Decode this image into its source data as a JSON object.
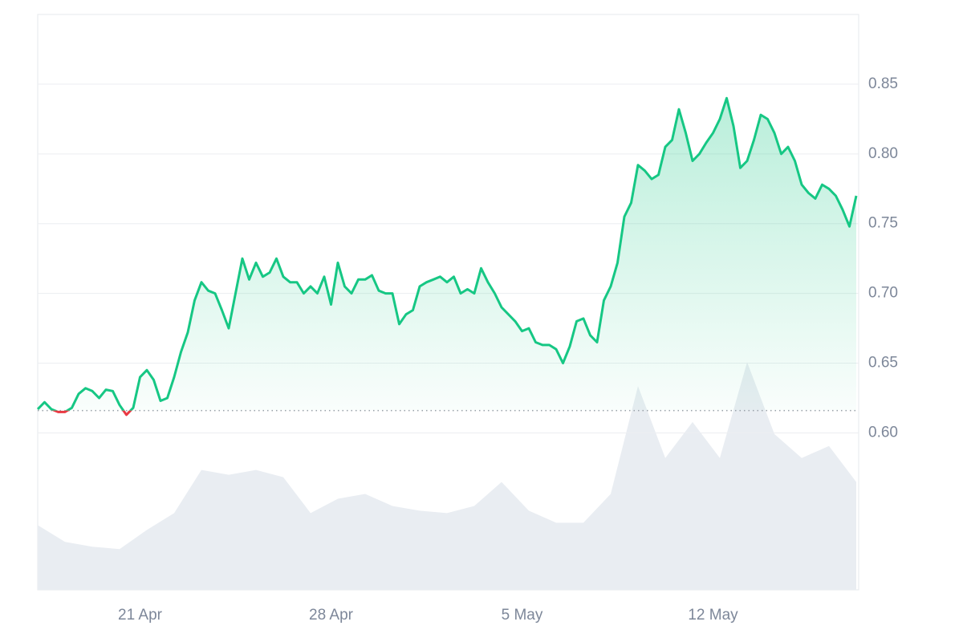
{
  "chart_data": {
    "type": "line",
    "categories": [
      null,
      null,
      null,
      null,
      null,
      null,
      null,
      null,
      null,
      null,
      null,
      null,
      null,
      null,
      null,
      "21 Apr",
      null,
      null,
      null,
      null,
      null,
      null,
      null,
      null,
      null,
      null,
      null,
      null,
      null,
      null,
      null,
      null,
      null,
      null,
      null,
      null,
      null,
      null,
      null,
      null,
      null,
      null,
      null,
      "28 Apr",
      null,
      null,
      null,
      null,
      null,
      null,
      null,
      null,
      null,
      null,
      null,
      null,
      null,
      null,
      null,
      null,
      null,
      null,
      null,
      null,
      null,
      null,
      null,
      null,
      null,
      null,
      null,
      "5 May",
      null,
      null,
      null,
      null,
      null,
      null,
      null,
      null,
      null,
      null,
      null,
      null,
      null,
      null,
      null,
      null,
      null,
      null,
      null,
      null,
      null,
      null,
      null,
      null,
      null,
      null,
      null,
      "12 May",
      null,
      null,
      null,
      null,
      null,
      null,
      null,
      null,
      null,
      null,
      null,
      null,
      null,
      null,
      null,
      null,
      null,
      null,
      null,
      null,
      null
    ],
    "series": [
      {
        "color": "#16c784",
        "below_color": "#ea3943",
        "values": [
          0.617,
          0.622,
          0.617,
          0.615,
          0.615,
          0.618,
          0.628,
          0.632,
          0.63,
          0.625,
          0.631,
          0.63,
          0.62,
          0.613,
          0.618,
          0.64,
          0.645,
          0.638,
          0.623,
          0.625,
          0.64,
          0.658,
          0.672,
          0.695,
          0.708,
          0.702,
          0.7,
          0.688,
          0.675,
          0.7,
          0.725,
          0.71,
          0.722,
          0.712,
          0.715,
          0.725,
          0.712,
          0.708,
          0.708,
          0.7,
          0.705,
          0.7,
          0.712,
          0.692,
          0.722,
          0.705,
          0.7,
          0.71,
          0.71,
          0.713,
          0.702,
          0.7,
          0.7,
          0.678,
          0.685,
          0.688,
          0.705,
          0.708,
          0.71,
          0.712,
          0.708,
          0.712,
          0.7,
          0.703,
          0.7,
          0.718,
          0.708,
          0.7,
          0.69,
          0.685,
          0.68,
          0.673,
          0.675,
          0.665,
          0.663,
          0.663,
          0.66,
          0.65,
          0.662,
          0.68,
          0.682,
          0.67,
          0.665,
          0.695,
          0.705,
          0.722,
          0.755,
          0.765,
          0.792,
          0.788,
          0.782,
          0.785,
          0.805,
          0.81,
          0.832,
          0.815,
          0.795,
          0.8,
          0.808,
          0.815,
          0.825,
          0.84,
          0.82,
          0.79,
          0.795,
          0.81,
          0.828,
          0.825,
          0.815,
          0.8,
          0.805,
          0.795,
          0.778,
          0.772,
          0.768,
          0.778,
          0.775,
          0.77,
          0.76,
          0.748,
          0.77
        ]
      }
    ],
    "baseline": 0.616,
    "ylim": [
      0.4875,
      0.9
    ],
    "yticks": [
      {
        "value": 0.6,
        "label": "0.60"
      },
      0.65,
      {
        "value": 0.7,
        "label": "0.70"
      },
      0.75,
      {
        "value": 0.8,
        "label": "0.80"
      },
      0.85
    ],
    "grid": true,
    "volume": {
      "color": "#e9edf2",
      "values": [
        27,
        20,
        18,
        17,
        25,
        32,
        50,
        48,
        50,
        47,
        32,
        38,
        40,
        35,
        33,
        32,
        35,
        45,
        33,
        28,
        28,
        40,
        85,
        55,
        70,
        55,
        95,
        65,
        55,
        60,
        45
      ],
      "lim": [
        0,
        120
      ]
    }
  }
}
